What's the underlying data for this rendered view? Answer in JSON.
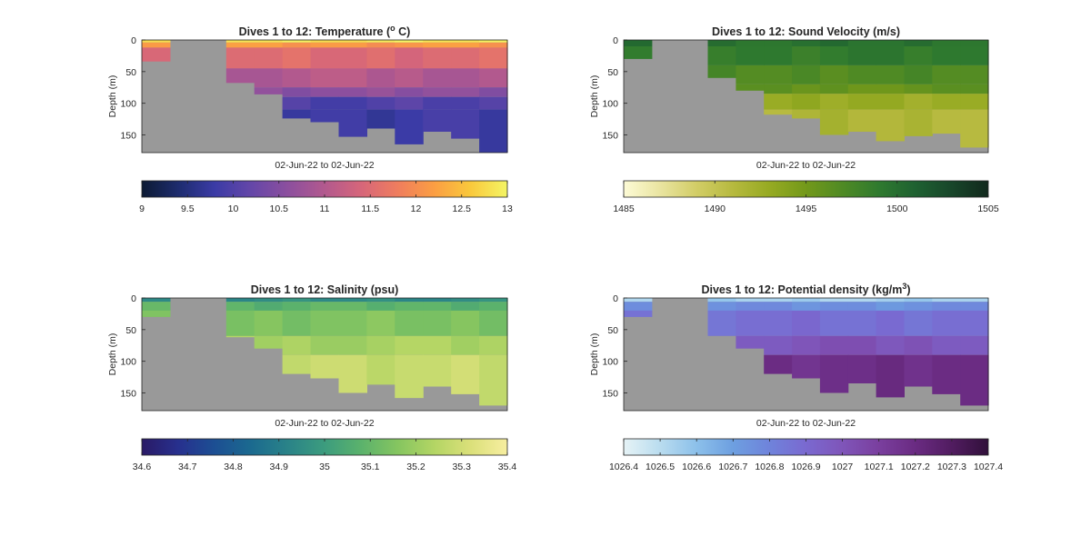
{
  "figure": {
    "background": "#ffffff",
    "mask_color": "#999999"
  },
  "chart_data": [
    {
      "type": "heatmap",
      "title_main": "Dives 1 to 12: Temperature (",
      "title_sup": "o",
      "title_end": " C)",
      "xlabel": "02-Jun-22 to 02-Jun-22",
      "ylabel": "Depth (m)",
      "ylim": [
        0,
        178
      ],
      "yticks": [
        0,
        50,
        100,
        150
      ],
      "colorbar": {
        "ticks": [
          9,
          9.5,
          10,
          10.5,
          11,
          11.5,
          12,
          12.5,
          13
        ],
        "labels": [
          "9",
          "9.5",
          "10",
          "10.5",
          "11",
          "11.5",
          "12",
          "12.5",
          "13"
        ],
        "range": [
          9,
          13
        ],
        "colors": [
          "#0c1a33",
          "#1d2c6e",
          "#3b3ba6",
          "#6547a8",
          "#8c4f9e",
          "#b2598e",
          "#d6667a",
          "#ef7d5e",
          "#fb9e43",
          "#f9c93c",
          "#f4f564"
        ]
      },
      "profile_bottoms_m": [
        34,
        0,
        0,
        68,
        86,
        124,
        130,
        153,
        140,
        165,
        145,
        156,
        178
      ],
      "layers": [
        {
          "to_m": 4,
          "value": 12.9
        },
        {
          "to_m": 12,
          "value": 12.1
        },
        {
          "to_m": 45,
          "value": 11.5
        },
        {
          "to_m": 75,
          "value": 11.0
        },
        {
          "to_m": 90,
          "value": 10.6
        },
        {
          "to_m": 110,
          "value": 10.0
        },
        {
          "to_m": 178,
          "value": 9.8
        }
      ]
    },
    {
      "type": "heatmap",
      "title_main": "Dives 1 to 12: Sound Velocity (m/s)",
      "title_sup": "",
      "title_end": "",
      "xlabel": "02-Jun-22 to 02-Jun-22",
      "ylabel": "Depth (m)",
      "ylim": [
        0,
        178
      ],
      "yticks": [
        0,
        50,
        100,
        150
      ],
      "colorbar": {
        "ticks": [
          1485,
          1490,
          1495,
          1500,
          1505
        ],
        "labels": [
          "1485",
          "1490",
          "1495",
          "1500",
          "1505"
        ],
        "range": [
          1485,
          1505
        ],
        "colors": [
          "#fdfbd6",
          "#e9e4a0",
          "#d2cd66",
          "#b6b93e",
          "#96aa22",
          "#73991a",
          "#4f8a24",
          "#2f7a2f",
          "#1e6131",
          "#18462a",
          "#11281c"
        ]
      },
      "profile_bottoms_m": [
        30,
        0,
        0,
        60,
        80,
        118,
        124,
        150,
        145,
        160,
        152,
        148,
        170
      ],
      "layers": [
        {
          "to_m": 10,
          "value": 1499.8
        },
        {
          "to_m": 40,
          "value": 1498.8
        },
        {
          "to_m": 70,
          "value": 1497.0
        },
        {
          "to_m": 85,
          "value": 1495.8
        },
        {
          "to_m": 110,
          "value": 1492.8
        },
        {
          "to_m": 178,
          "value": 1491.5
        }
      ]
    },
    {
      "type": "heatmap",
      "title_main": "Dives 1 to 12: Salinity (psu)",
      "title_sup": "",
      "title_end": "",
      "xlabel": "02-Jun-22 to 02-Jun-22",
      "ylabel": "Depth (m)",
      "ylim": [
        0,
        178
      ],
      "yticks": [
        0,
        50,
        100,
        150
      ],
      "colorbar": {
        "ticks": [
          34.6,
          34.7,
          34.8,
          34.9,
          35,
          35.1,
          35.2,
          35.3,
          35.4
        ],
        "labels": [
          "34.6",
          "34.7",
          "34.8",
          "34.9",
          "35",
          "35.1",
          "35.2",
          "35.3",
          "35.4"
        ],
        "range": [
          34.6,
          35.4
        ],
        "colors": [
          "#2a1a66",
          "#27308e",
          "#1c4f93",
          "#1b6a8f",
          "#2a8388",
          "#3c9c7e",
          "#5bb26c",
          "#85c560",
          "#b3d564",
          "#dbe07a",
          "#f7eea0"
        ]
      },
      "profile_bottoms_m": [
        30,
        0,
        0,
        62,
        80,
        120,
        127,
        150,
        137,
        158,
        140,
        152,
        170
      ],
      "layers": [
        {
          "to_m": 6,
          "value": 34.95
        },
        {
          "to_m": 20,
          "value": 35.08
        },
        {
          "to_m": 60,
          "value": 35.15
        },
        {
          "to_m": 90,
          "value": 35.22
        },
        {
          "to_m": 178,
          "value": 35.28
        }
      ]
    },
    {
      "type": "heatmap",
      "title_main": "Dives 1 to 12: Potential density (kg/m",
      "title_sup": "3",
      "title_end": ")",
      "xlabel": "02-Jun-22 to 02-Jun-22",
      "ylabel": "Depth (m)",
      "ylim": [
        0,
        178
      ],
      "yticks": [
        0,
        50,
        100,
        150
      ],
      "colorbar": {
        "ticks": [
          1026.4,
          1026.5,
          1026.6,
          1026.7,
          1026.8,
          1026.9,
          1027,
          1027.1,
          1027.2,
          1027.3,
          1027.4
        ],
        "labels": [
          "1026.4",
          "1026.5",
          "1026.6",
          "1026.7",
          "1026.8",
          "1026.9",
          "1027",
          "1027.1",
          "1027.2",
          "1027.3",
          "1027.4"
        ],
        "range": [
          1026.4,
          1027.4
        ],
        "colors": [
          "#e6f3f6",
          "#b9dcef",
          "#8cc0ea",
          "#6d9fe0",
          "#6f83db",
          "#7a69d0",
          "#7f55b9",
          "#7a3f9e",
          "#6a2b82",
          "#511c60",
          "#31103a"
        ]
      },
      "profile_bottoms_m": [
        30,
        0,
        0,
        60,
        80,
        120,
        127,
        150,
        135,
        157,
        140,
        152,
        170
      ],
      "layers": [
        {
          "to_m": 6,
          "value": 1026.55
        },
        {
          "to_m": 20,
          "value": 1026.75
        },
        {
          "to_m": 60,
          "value": 1026.88
        },
        {
          "to_m": 90,
          "value": 1027.0
        },
        {
          "to_m": 178,
          "value": 1027.18
        }
      ]
    }
  ]
}
